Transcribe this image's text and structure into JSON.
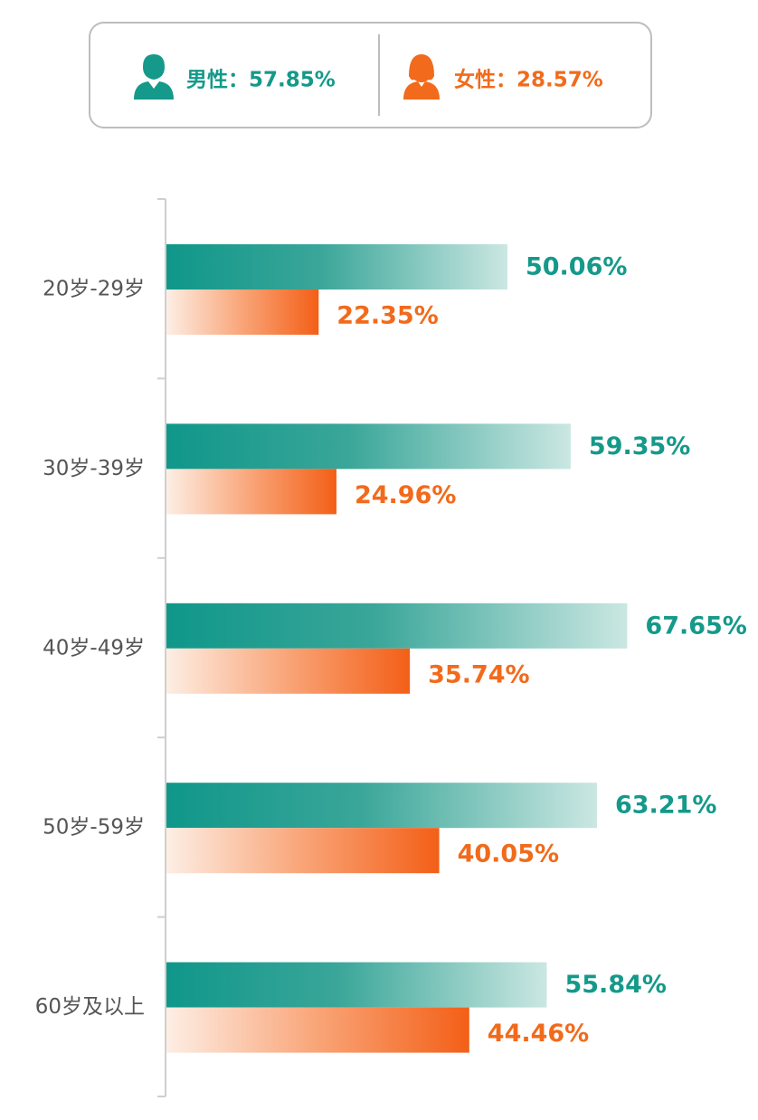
{
  "chart_data": {
    "type": "grouped-hbar",
    "categories": [
      "20岁-29岁",
      "30岁-39岁",
      "40岁-49岁",
      "50岁-59岁",
      "60岁及以上"
    ],
    "series": [
      {
        "name": "男性：57.85%",
        "share": 57.85,
        "color": "#14998a",
        "values": [
          50.06,
          59.35,
          67.65,
          63.21,
          55.84
        ],
        "value_labels": [
          "50.06%",
          "59.35%",
          "67.65%",
          "63.21%",
          "55.84%"
        ]
      },
      {
        "name": "女性：28.57%",
        "share": 28.57,
        "color": "#f26a1b",
        "values": [
          22.35,
          24.96,
          35.74,
          40.05,
          44.46
        ],
        "value_labels": [
          "22.35%",
          "24.96%",
          "35.74%",
          "40.05%",
          "44.46%"
        ]
      }
    ],
    "xlim": [
      0,
      86
    ]
  }
}
